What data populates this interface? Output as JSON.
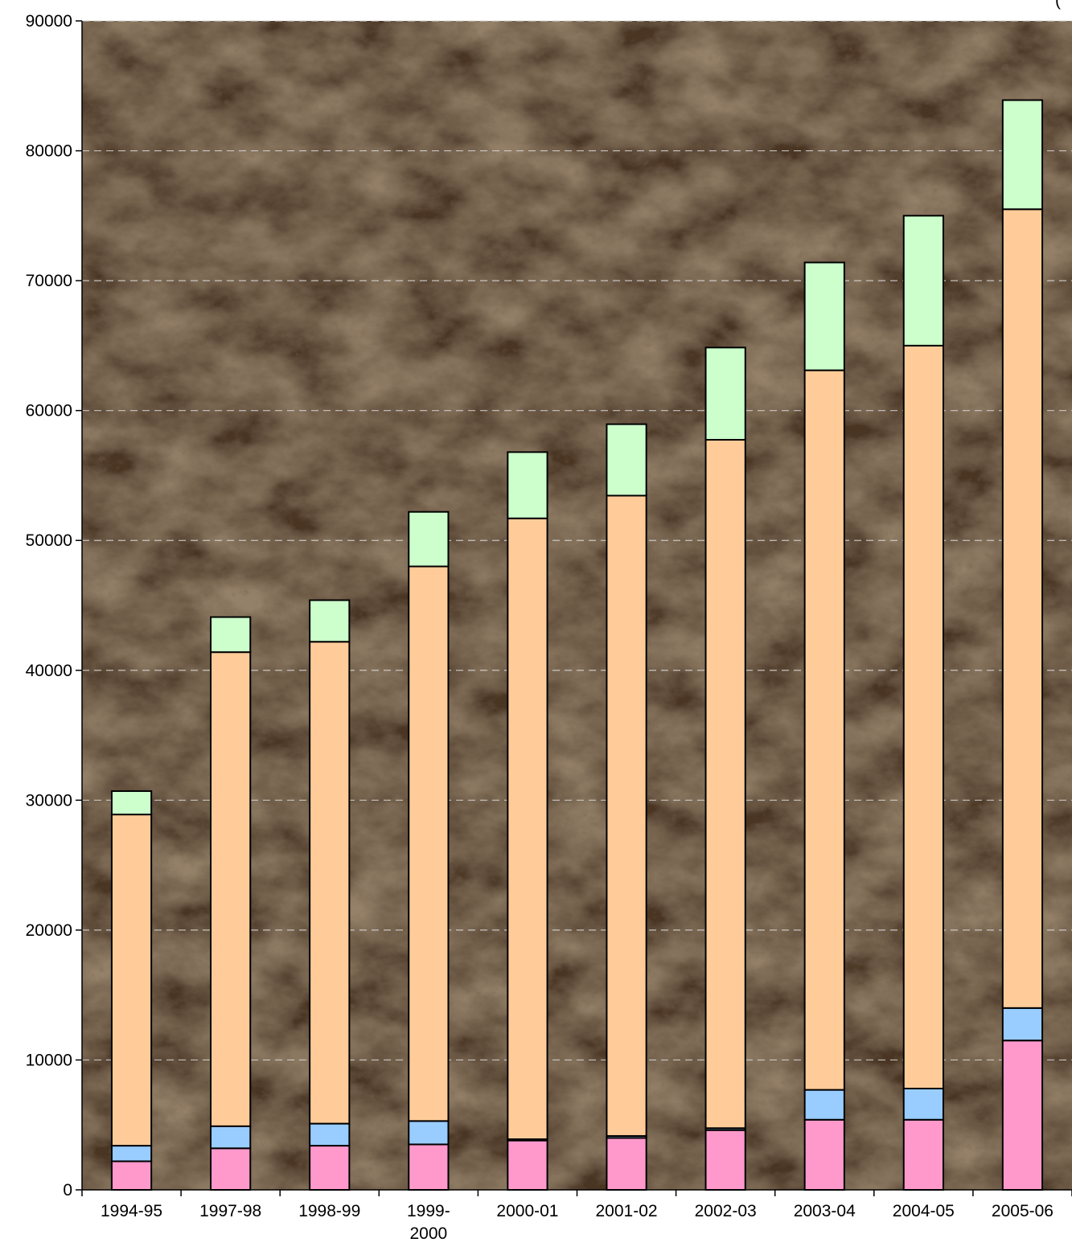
{
  "chart_data": {
    "type": "bar",
    "stacked": true,
    "title": "",
    "corner_note": "(",
    "xlabel": "",
    "ylabel": "",
    "categories": [
      "1994-95",
      "1997-98",
      "1998-99",
      "1999-2000",
      "2000-01",
      "2001-02",
      "2002-03",
      "2003-04",
      "2004-05",
      "2005-06"
    ],
    "category_lines": [
      [
        "1994-95"
      ],
      [
        "1997-98"
      ],
      [
        "1998-99"
      ],
      [
        "1999-",
        "2000"
      ],
      [
        "2000-01"
      ],
      [
        "2001-02"
      ],
      [
        "2002-03"
      ],
      [
        "2003-04"
      ],
      [
        "2004-05"
      ],
      [
        "2005-06"
      ]
    ],
    "series": [
      {
        "color": "#ff99cc",
        "values": [
          2200,
          3200,
          3400,
          3500,
          3800,
          4000,
          4600,
          5400,
          5400,
          11500
        ]
      },
      {
        "color": "#99ccff",
        "values": [
          1200,
          1700,
          1700,
          1800,
          100,
          150,
          150,
          2300,
          2400,
          2500
        ]
      },
      {
        "color": "#ffcc99",
        "values": [
          25500,
          36500,
          37100,
          42700,
          47800,
          49300,
          53000,
          55400,
          57200,
          61500
        ]
      },
      {
        "color": "#ccffcc",
        "values": [
          1800,
          2700,
          3200,
          4200,
          5100,
          5500,
          7100,
          8300,
          10000,
          8400
        ]
      }
    ],
    "ylim": [
      0,
      90000
    ],
    "yticks": [
      0,
      10000,
      20000,
      30000,
      40000,
      50000,
      60000,
      70000,
      80000,
      90000
    ],
    "grid": true,
    "legend": "none"
  }
}
